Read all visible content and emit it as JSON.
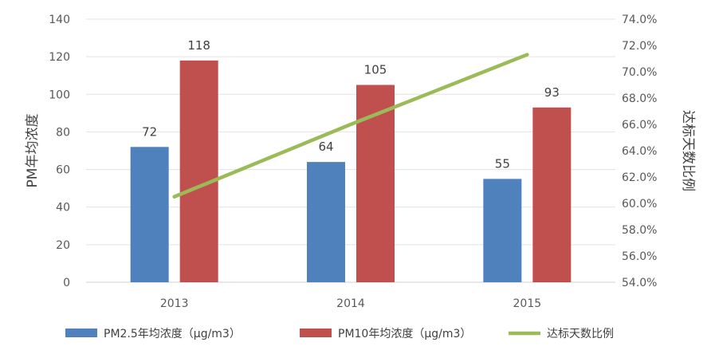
{
  "chart_data": {
    "type": "bar",
    "categories": [
      "2013",
      "2014",
      "2015"
    ],
    "title": "",
    "xlabel": "",
    "ylabel": "PM年均浓度",
    "y2label": "达标天数比例",
    "ylim": [
      0,
      140
    ],
    "yticks": [
      "0",
      "20",
      "40",
      "60",
      "80",
      "100",
      "120",
      "140"
    ],
    "y2lim": [
      0.54,
      0.74
    ],
    "y2ticks": [
      "54.0%",
      "56.0%",
      "58.0%",
      "60.0%",
      "62.0%",
      "64.0%",
      "66.0%",
      "68.0%",
      "70.0%",
      "72.0%",
      "74.0%"
    ],
    "grid": true,
    "legend_position": "bottom",
    "series": [
      {
        "name": "PM2.5年均浓度（μg/m3）",
        "type": "bar",
        "axis": "left",
        "values": [
          72,
          64,
          55
        ],
        "color": "#4F81BD"
      },
      {
        "name": "PM10年均浓度（μg/m3）",
        "type": "bar",
        "axis": "left",
        "values": [
          118,
          105,
          93
        ],
        "color": "#C0504D"
      },
      {
        "name": "达标天数比例",
        "type": "line",
        "axis": "right",
        "values": [
          0.605,
          0.66,
          0.713
        ],
        "color": "#9BBB59"
      }
    ]
  }
}
